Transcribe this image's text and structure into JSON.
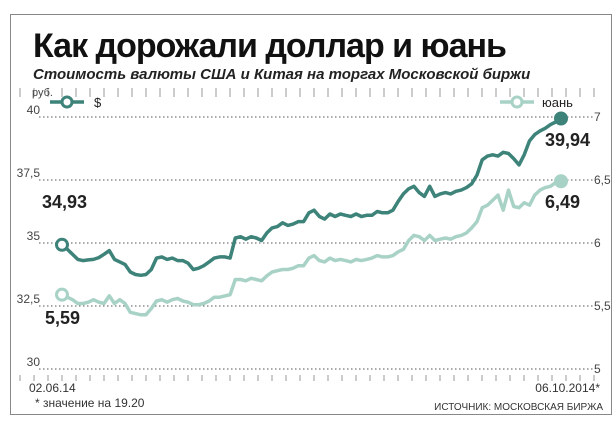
{
  "chart_data": {
    "type": "line",
    "title": "Как дорожали доллар и юань",
    "subtitle": "Стоимость валюты США и Китая на торгах Московской биржи",
    "left_axis_unit": "руб.",
    "left_axis": {
      "range": [
        30,
        40
      ],
      "ticks": [
        "30",
        "32,5",
        "35",
        "37,5",
        "40"
      ]
    },
    "right_axis": {
      "range": [
        5,
        7
      ],
      "ticks": [
        "5",
        "5,5",
        "6",
        "6,5",
        "7"
      ]
    },
    "x_labels": {
      "start": "02.06.14",
      "end": "06.10.2014*"
    },
    "footnote": "* значение на 19.20",
    "source": "ИСТОЧНИК: МОСКОВСКАЯ БИРЖА",
    "colors": {
      "usd": "#3d8379",
      "cny": "#a9d2c7",
      "grid": "#555555",
      "frame": "#888888"
    },
    "series": [
      {
        "name": "$",
        "key": "usd",
        "axis": "left",
        "start_label": "34,93",
        "end_label": "39,94",
        "values": [
          34.93,
          34.75,
          34.55,
          34.35,
          34.3,
          34.33,
          34.35,
          34.42,
          34.55,
          34.7,
          34.35,
          34.25,
          34.15,
          33.85,
          33.75,
          33.72,
          33.75,
          33.95,
          34.4,
          34.45,
          34.35,
          34.4,
          34.3,
          34.3,
          34.2,
          33.95,
          34.0,
          34.1,
          34.25,
          34.4,
          34.45,
          34.45,
          34.4,
          35.2,
          35.25,
          35.15,
          35.25,
          35.2,
          35.1,
          35.4,
          35.6,
          35.65,
          35.8,
          35.7,
          35.75,
          35.85,
          35.85,
          36.2,
          36.3,
          36.05,
          35.95,
          36.15,
          36.05,
          36.15,
          36.1,
          36.05,
          36.15,
          36.05,
          36.1,
          36.1,
          36.25,
          36.2,
          36.2,
          36.3,
          36.65,
          36.95,
          37.15,
          37.25,
          37.0,
          36.85,
          37.25,
          36.85,
          36.95,
          37.0,
          36.95,
          37.05,
          37.1,
          37.2,
          37.35,
          37.7,
          38.3,
          38.45,
          38.5,
          38.45,
          38.6,
          38.55,
          38.35,
          38.1,
          38.5,
          39.05,
          39.3,
          39.45,
          39.55,
          39.7,
          39.8,
          39.94
        ]
      },
      {
        "name": "юань",
        "key": "cny",
        "axis": "right",
        "start_label": "5,59",
        "end_label": "6,49",
        "values": [
          5.59,
          5.57,
          5.55,
          5.52,
          5.52,
          5.53,
          5.55,
          5.53,
          5.52,
          5.58,
          5.52,
          5.55,
          5.52,
          5.45,
          5.44,
          5.43,
          5.43,
          5.48,
          5.54,
          5.55,
          5.53,
          5.55,
          5.56,
          5.54,
          5.53,
          5.51,
          5.51,
          5.52,
          5.54,
          5.57,
          5.57,
          5.58,
          5.59,
          5.71,
          5.71,
          5.7,
          5.72,
          5.71,
          5.7,
          5.74,
          5.77,
          5.78,
          5.79,
          5.79,
          5.8,
          5.82,
          5.82,
          5.88,
          5.9,
          5.86,
          5.85,
          5.88,
          5.86,
          5.87,
          5.86,
          5.85,
          5.87,
          5.86,
          5.87,
          5.88,
          5.9,
          5.89,
          5.89,
          5.9,
          5.93,
          5.95,
          6.02,
          6.06,
          6.05,
          6.02,
          6.06,
          6.02,
          6.03,
          6.04,
          6.03,
          6.05,
          6.06,
          6.08,
          6.12,
          6.17,
          6.28,
          6.3,
          6.34,
          6.38,
          6.26,
          6.42,
          6.29,
          6.28,
          6.32,
          6.3,
          6.38,
          6.42,
          6.44,
          6.45,
          6.48,
          6.49
        ]
      }
    ]
  }
}
